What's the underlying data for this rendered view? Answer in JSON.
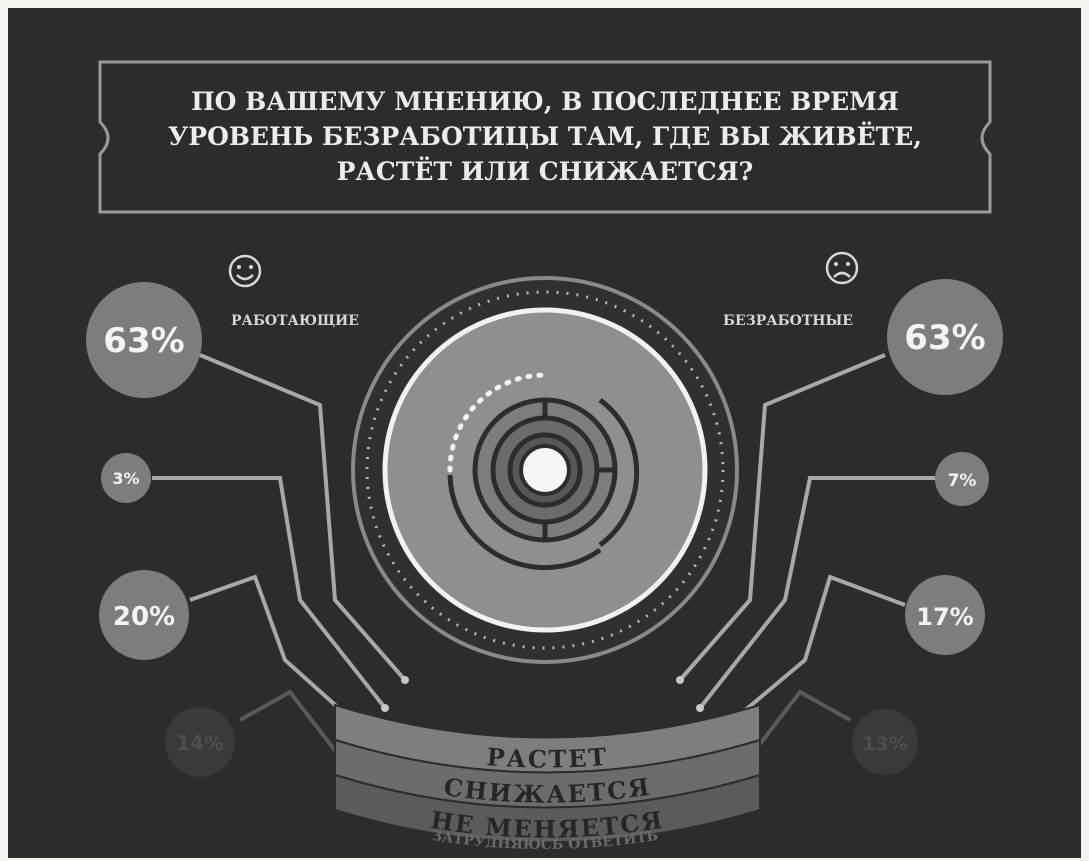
{
  "question": {
    "line1": "ПО ВАШЕМУ МНЕНИЮ, В ПОСЛЕДНЕЕ ВРЕМЯ",
    "line2": "УРОВЕНЬ БЕЗРАБОТИЦЫ ТАМ, ГДЕ ВЫ ЖИВЁТЕ,",
    "line3": "РАСТЁТ ИЛИ СНИЖАЕТСЯ?"
  },
  "groups": {
    "employed": {
      "label": "РАБОТАЮЩИЕ",
      "icon": "smile-icon",
      "grows": "63%",
      "declines": "3%",
      "unchanged": "20%",
      "hard_to_say": "14%"
    },
    "unemployed": {
      "label": "БЕЗРАБОТНЫЕ",
      "icon": "frown-icon",
      "grows": "63%",
      "declines": "7%",
      "unchanged": "17%",
      "hard_to_say": "13%"
    }
  },
  "answers": {
    "grows": "РАСТЕТ",
    "declines": "СНИЖАЕТСЯ",
    "unchanged": "НЕ МЕНЯЕТСЯ",
    "hard_to_say": "ЗАТРУДНЯЮСЬ ОТВЕТИТЬ"
  },
  "colors": {
    "background": "#2c2c2c",
    "frame": "#9a9a9a",
    "circle_large": "#9c9c9c",
    "circle_small": "#a8a8a8",
    "ribbon": "#7e7e7e",
    "text_light": "#ececec"
  }
}
